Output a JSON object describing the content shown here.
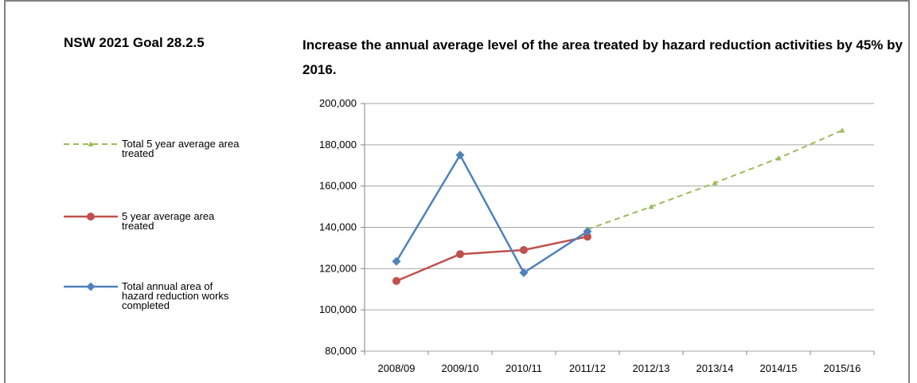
{
  "header": {
    "goal_id": "NSW 2021 Goal 28.2.5",
    "goal_text": "Increase the annual average level of the area treated by hazard reduction activities by 45% by 2016."
  },
  "legend": [
    {
      "label": "Total 5 year average area treated"
    },
    {
      "label": "5 year average area treated"
    },
    {
      "label": "Total annual area of hazard reduction works completed"
    }
  ],
  "chart_data": {
    "type": "line",
    "title": "",
    "xlabel": "",
    "ylabel": "",
    "categories": [
      "2008/09",
      "2009/10",
      "2010/11",
      "2011/12",
      "2012/13",
      "2013/14",
      "2014/15",
      "2015/16"
    ],
    "ylim": [
      80000,
      200000
    ],
    "yticks": [
      80000,
      100000,
      120000,
      140000,
      160000,
      180000,
      200000
    ],
    "ytick_labels": [
      "80,000",
      "100,000",
      "120,000",
      "140,000",
      "160,000",
      "180,000",
      "200,000"
    ],
    "grid": true,
    "legend_position": "left",
    "series": [
      {
        "name": "Total 5 year average area treated",
        "color": "#9bbb59",
        "style": "dashed",
        "marker": "triangle",
        "values": [
          null,
          null,
          null,
          139000,
          150000,
          161500,
          173500,
          187000
        ]
      },
      {
        "name": "5 year average area treated",
        "color": "#c0504d",
        "style": "solid",
        "marker": "circle",
        "values": [
          114000,
          127000,
          129000,
          135500,
          null,
          null,
          null,
          null
        ]
      },
      {
        "name": "Total annual area of hazard reduction works completed",
        "color": "#4f81bd",
        "style": "solid",
        "marker": "diamond",
        "values": [
          123500,
          175000,
          118000,
          138000,
          null,
          null,
          null,
          null
        ]
      }
    ]
  }
}
